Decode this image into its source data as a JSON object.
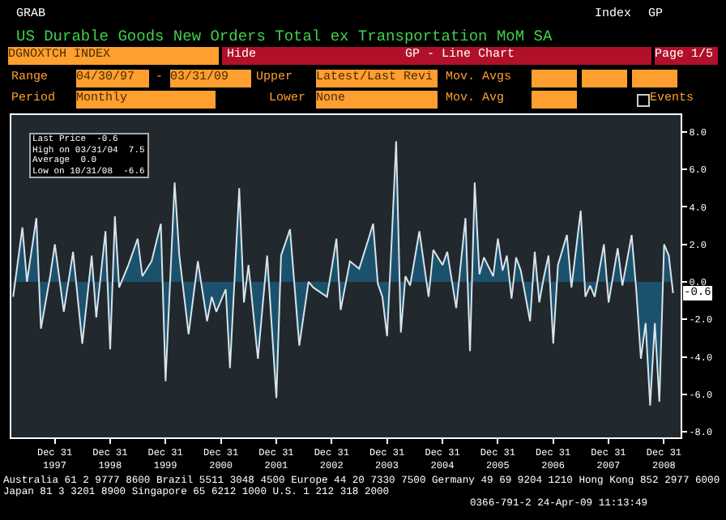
{
  "chart_data": {
    "type": "area",
    "title": "US Durable Goods New Orders Total ex Transportation MoM SA",
    "x": [
      "1997-04",
      "1997-06",
      "1997-07",
      "1997-09",
      "1997-10",
      "1997-12",
      "1998-01",
      "1998-03",
      "1998-05",
      "1998-07",
      "1998-09",
      "1998-10",
      "1998-12",
      "1999-01",
      "1999-02",
      "1999-03",
      "1999-05",
      "1999-07",
      "1999-08",
      "1999-10",
      "1999-12",
      "2000-01",
      "2000-03",
      "2000-04",
      "2000-06",
      "2000-08",
      "2000-10",
      "2000-11",
      "2000-12",
      "2001-02",
      "2001-03",
      "2001-05",
      "2001-06",
      "2001-07",
      "2001-09",
      "2001-11",
      "2002-01",
      "2002-02",
      "2002-04",
      "2002-06",
      "2002-08",
      "2002-09",
      "2002-12",
      "2003-02",
      "2003-03",
      "2003-05",
      "2003-07",
      "2003-09",
      "2003-10",
      "2003-11",
      "2003-12",
      "2004-01",
      "2004-02",
      "2004-03",
      "2004-04",
      "2004-05",
      "2004-06",
      "2004-08",
      "2004-10",
      "2004-11",
      "2005-01",
      "2005-02",
      "2005-04",
      "2005-06",
      "2005-07",
      "2005-08",
      "2005-09",
      "2005-10",
      "2005-12",
      "2006-01",
      "2006-02",
      "2006-03",
      "2006-04",
      "2006-05",
      "2006-06",
      "2006-08",
      "2006-09",
      "2006-10",
      "2006-11",
      "2006-12",
      "2007-01",
      "2007-02",
      "2007-04",
      "2007-05",
      "2007-07",
      "2007-08",
      "2007-09",
      "2007-10",
      "2007-12",
      "2008-01",
      "2008-03",
      "2008-04",
      "2008-06",
      "2008-07",
      "2008-08",
      "2008-09",
      "2008-10",
      "2008-11",
      "2008-12",
      "2009-01",
      "2009-02",
      "2009-03"
    ],
    "series": [
      {
        "color": "#d8e4ea",
        "values": [
          -0.8,
          2.9,
          0.0,
          3.4,
          -2.5,
          0.3,
          2.0,
          -1.6,
          1.6,
          -3.3,
          1.4,
          -1.9,
          2.7,
          -3.6,
          3.5,
          -0.3,
          0.9,
          2.3,
          0.3,
          1.1,
          3.1,
          -5.3,
          5.3,
          1.4,
          -2.8,
          1.1,
          -2.1,
          -0.8,
          -1.6,
          -0.4,
          -4.6,
          5.0,
          -1.1,
          0.9,
          -4.1,
          1.4,
          -6.2,
          1.4,
          2.8,
          -3.4,
          0.0,
          -0.3,
          -0.8,
          2.3,
          -1.5,
          1.1,
          0.7,
          2.3,
          3.1,
          -0.1,
          -0.8,
          -2.9,
          2.3,
          7.5,
          -2.7,
          0.3,
          -0.2,
          2.7,
          -0.8,
          1.7,
          0.9,
          1.6,
          -1.4,
          3.4,
          -3.7,
          5.3,
          0.4,
          1.3,
          0.3,
          2.3,
          0.6,
          1.4,
          -0.9,
          1.3,
          0.6,
          -2.1,
          1.6,
          -1.1,
          0.3,
          1.4,
          -3.3,
          0.9,
          2.5,
          -0.3,
          3.8,
          -0.8,
          -0.2,
          -0.8,
          2.0,
          -1.1,
          1.8,
          -0.2,
          2.5,
          -0.4,
          -4.1,
          -2.2,
          -6.6,
          -2.2,
          -6.4,
          2.0,
          1.4,
          -0.6
        ]
      }
    ],
    "xlim": [
      "1997-03-20",
      "2009-04-20"
    ],
    "xticks": [
      {
        "value": "1997-12-31",
        "label": "Dec 31\n1997"
      },
      {
        "value": "1998-12-31",
        "label": "Dec 31\n1998"
      },
      {
        "value": "1999-12-31",
        "label": "Dec 31\n1999"
      },
      {
        "value": "2000-12-31",
        "label": "Dec 31\n2000"
      },
      {
        "value": "2001-12-31",
        "label": "Dec 31\n2001"
      },
      {
        "value": "2002-12-31",
        "label": "Dec 31\n2002"
      },
      {
        "value": "2003-12-31",
        "label": "Dec 31\n2003"
      },
      {
        "value": "2004-12-31",
        "label": "Dec 31\n2004"
      },
      {
        "value": "2005-12-31",
        "label": "Dec 31\n2005"
      },
      {
        "value": "2006-12-31",
        "label": "Dec 31\n2006"
      },
      {
        "value": "2007-12-31",
        "label": "Dec 31\n2007"
      },
      {
        "value": "2008-12-31",
        "label": "Dec 31\n2008"
      }
    ],
    "ylim": [
      -8.3,
      8.9
    ],
    "yticks": [
      {
        "value": 8,
        "label": "8.0"
      },
      {
        "value": 6,
        "label": "6.0"
      },
      {
        "value": 4,
        "label": "4.0"
      },
      {
        "value": 2,
        "label": "2.0"
      },
      {
        "value": 0,
        "label": "0.0"
      },
      {
        "value": -2,
        "label": "-2.0"
      },
      {
        "value": -4,
        "label": "-4.0"
      },
      {
        "value": -6,
        "label": "-6.0"
      },
      {
        "value": -8,
        "label": "-8.0"
      }
    ],
    "marker": "none",
    "line_style": "solid",
    "annotations": [
      "GRAB",
      "Index",
      "GP",
      "DGNOXTCH INDEX",
      "Hide",
      "GP - Line Chart",
      "Page 1/5",
      "Range",
      "04/30/97",
      "-",
      "03/31/09",
      "Upper",
      "Latest/Last Revi",
      "Mov. Avgs",
      "Period",
      "Monthly",
      "Lower",
      "None",
      "Mov. Avg",
      "Events",
      "Last Price  -0.6",
      "High on 03/31/04  7.5",
      "Average  0.0",
      "Low on 10/31/08  -6.6",
      "Australia 61 2 9777 8600 Brazil 5511 3048 4500 Europe 44 20 7330 7500 Germany 49 69 9204 1210 Hong Kong 852 2977 6000",
      "Japan 81 3 3201 8900      Singapore 65 6212 1000      U.S. 1 212 318 2000",
      "0366-791-2 24-Apr-09 11:13:49",
      {
        "text": "-0.6",
        "x": "2009-03",
        "y": -0.6
      }
    ]
  }
}
